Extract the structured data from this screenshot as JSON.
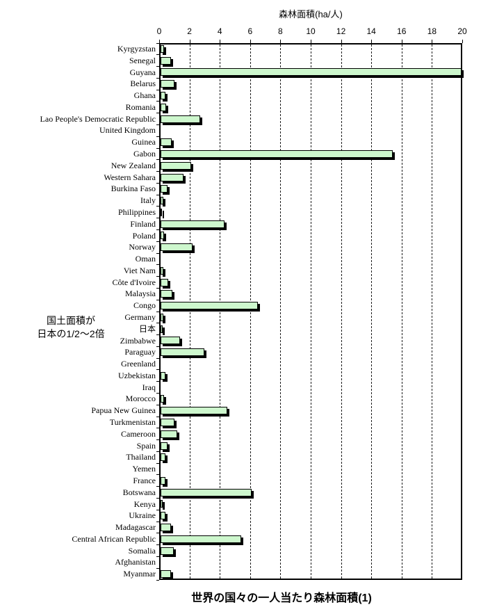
{
  "chart_data": {
    "type": "bar",
    "orientation": "horizontal",
    "title": "世界の国々の一人当たり森林面積(1)",
    "axis_title": "森林面積(ha/人)",
    "xlim": [
      0,
      20
    ],
    "x_ticks": [
      0,
      2,
      4,
      6,
      8,
      10,
      12,
      14,
      16,
      18,
      20
    ],
    "grid": "vertical-dashed",
    "legend": "none",
    "bar_color": "#cdf7cd",
    "bar_border_color": "#000000",
    "annotation": {
      "line1": "国土面積が",
      "line2": "日本の1/2～2倍"
    },
    "categories": [
      "Kyrgyzstan",
      "Senegal",
      "Guyana",
      "Belarus",
      "Ghana",
      "Romania",
      "Lao People's Democratic Republic",
      "United Kingdom",
      "Guinea",
      "Gabon",
      "New Zealand",
      "Western Sahara",
      "Burkina Faso",
      "Italy",
      "Philippines",
      "Finland",
      "Poland",
      "Norway",
      "Oman",
      "Viet Nam",
      "Côte d'Ivoire",
      "Malaysia",
      "Congo",
      "Germany",
      "日本",
      "Zimbabwe",
      "Paraguay",
      "Greenland",
      "Uzbekistan",
      "Iraq",
      "Morocco",
      "Papua New Guinea",
      "Turkmenistan",
      "Cameroon",
      "Spain",
      "Thailand",
      "Yemen",
      "France",
      "Botswana",
      "Kenya",
      "Ukraine",
      "Madagascar",
      "Central African Republic",
      "Somalia",
      "Afghanistan",
      "Myanmar"
    ],
    "values": [
      0.25,
      0.7,
      20.0,
      0.9,
      0.3,
      0.35,
      2.6,
      0.0,
      0.75,
      15.3,
      2.0,
      1.5,
      0.45,
      0.2,
      0.1,
      4.2,
      0.25,
      2.1,
      0.0,
      0.2,
      0.5,
      0.8,
      6.4,
      0.2,
      0.15,
      1.3,
      2.9,
      0.0,
      0.3,
      0.0,
      0.25,
      4.4,
      0.9,
      1.1,
      0.45,
      0.3,
      0.0,
      0.3,
      6.0,
      0.15,
      0.3,
      0.7,
      5.3,
      0.85,
      0.0,
      0.7
    ]
  }
}
